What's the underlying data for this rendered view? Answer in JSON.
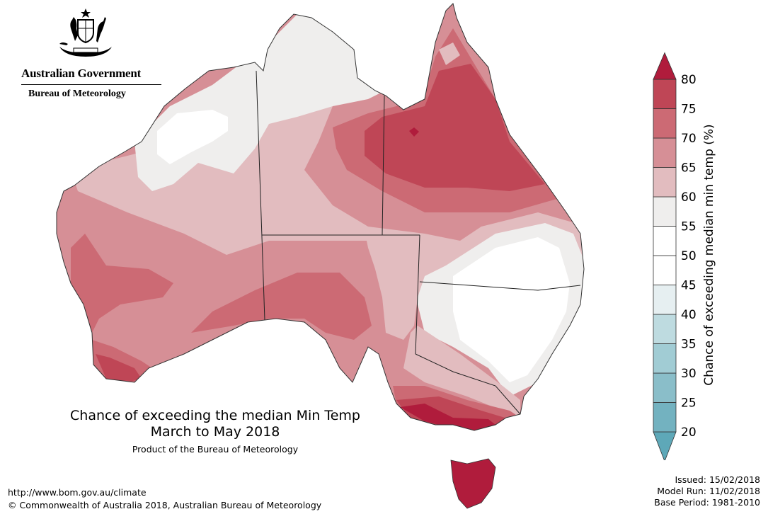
{
  "header": {
    "government": "Australian Government",
    "agency": "Bureau of Meteorology"
  },
  "map": {
    "title": "Chance of exceeding the median Min Temp",
    "subtitle": "March to May 2018",
    "product_note": "Product of the Bureau of Meteorology",
    "legend": {
      "label": "Chance of exceeding median min temp (%)",
      "ticks": [
        "20",
        "25",
        "30",
        "35",
        "40",
        "45",
        "50",
        "55",
        "60",
        "65",
        "70",
        "75",
        "80"
      ],
      "bins": [
        {
          "range": "<20",
          "color": "#5ea8b8"
        },
        {
          "range": "20-25",
          "color": "#73b2c0"
        },
        {
          "range": "25-30",
          "color": "#8abec9"
        },
        {
          "range": "30-35",
          "color": "#a1ccd4"
        },
        {
          "range": "35-40",
          "color": "#bedbe0"
        },
        {
          "range": "40-45",
          "color": "#e6eff1"
        },
        {
          "range": "45-50",
          "color": "#ffffff"
        },
        {
          "range": "50-55",
          "color": "#ffffff"
        },
        {
          "range": "55-60",
          "color": "#efeeed"
        },
        {
          "range": "60-65",
          "color": "#e2bcbf"
        },
        {
          "range": "65-70",
          "color": "#d68f96"
        },
        {
          "range": "70-75",
          "color": "#cc6a74"
        },
        {
          "range": "75-80",
          "color": "#bf4656"
        },
        {
          "range": ">80",
          "color": "#b01c3c"
        }
      ]
    }
  },
  "footer": {
    "url": "http://www.bom.gov.au/climate",
    "copyright": "© Commonwealth of Australia 2018, Australian Bureau of Meteorology",
    "issued": "Issued: 15/02/2018",
    "model_run": "Model Run: 11/02/2018",
    "base_period": "Base Period: 1981-2010"
  }
}
